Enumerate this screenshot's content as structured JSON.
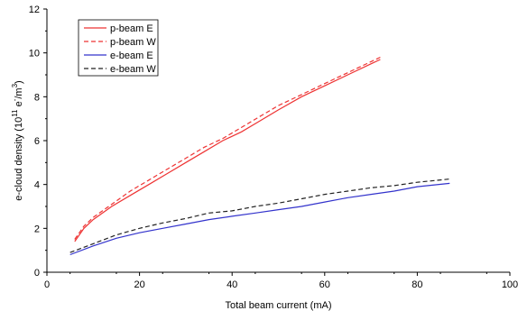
{
  "chart_data": {
    "type": "line",
    "xlabel": "Total beam current (mA)",
    "ylabel": {
      "prefix": "e-cloud density (10",
      "exp": "11",
      "mid": " e",
      "minus": "-",
      "slash": "/m",
      "exp3": "3",
      "suffix": ")"
    },
    "xlim": [
      0,
      100
    ],
    "ylim": [
      0,
      12
    ],
    "xticks": [
      "0",
      "20",
      "40",
      "60",
      "80",
      "100"
    ],
    "yticks": [
      "0",
      "2",
      "4",
      "6",
      "8",
      "10",
      "12"
    ],
    "grid": false,
    "legend_position": "top-left",
    "series": [
      {
        "name": "p-beam E",
        "color": "#ee3333",
        "dash": "solid",
        "x": [
          6,
          8,
          10,
          14,
          18,
          22,
          26,
          30,
          34,
          38,
          42,
          46,
          50,
          55,
          60,
          65,
          70,
          72
        ],
        "y": [
          1.4,
          2.0,
          2.4,
          3.0,
          3.5,
          4.0,
          4.5,
          5.0,
          5.5,
          6.0,
          6.4,
          6.9,
          7.4,
          8.0,
          8.5,
          9.0,
          9.5,
          9.7
        ]
      },
      {
        "name": "p-beam W",
        "color": "#ee3333",
        "dash": "dashed",
        "x": [
          6,
          8,
          10,
          14,
          18,
          22,
          26,
          30,
          34,
          38,
          42,
          46,
          50,
          55,
          60,
          65,
          70,
          72
        ],
        "y": [
          1.5,
          2.1,
          2.5,
          3.1,
          3.7,
          4.2,
          4.7,
          5.2,
          5.7,
          6.1,
          6.6,
          7.1,
          7.6,
          8.1,
          8.6,
          9.1,
          9.6,
          9.8
        ]
      },
      {
        "name": "e-beam E",
        "color": "#3333cc",
        "dash": "solid",
        "x": [
          5,
          10,
          15,
          20,
          25,
          30,
          35,
          40,
          45,
          50,
          55,
          60,
          65,
          70,
          75,
          80,
          87
        ],
        "y": [
          0.8,
          1.2,
          1.55,
          1.8,
          2.0,
          2.2,
          2.4,
          2.55,
          2.7,
          2.85,
          3.0,
          3.2,
          3.4,
          3.55,
          3.7,
          3.9,
          4.05
        ]
      },
      {
        "name": "e-beam W",
        "color": "#222222",
        "dash": "dashed",
        "x": [
          5,
          10,
          15,
          20,
          25,
          30,
          35,
          40,
          45,
          50,
          55,
          60,
          65,
          70,
          75,
          80,
          87
        ],
        "y": [
          0.9,
          1.3,
          1.7,
          2.0,
          2.25,
          2.45,
          2.7,
          2.8,
          3.0,
          3.15,
          3.35,
          3.55,
          3.7,
          3.85,
          3.95,
          4.1,
          4.25
        ]
      }
    ]
  }
}
